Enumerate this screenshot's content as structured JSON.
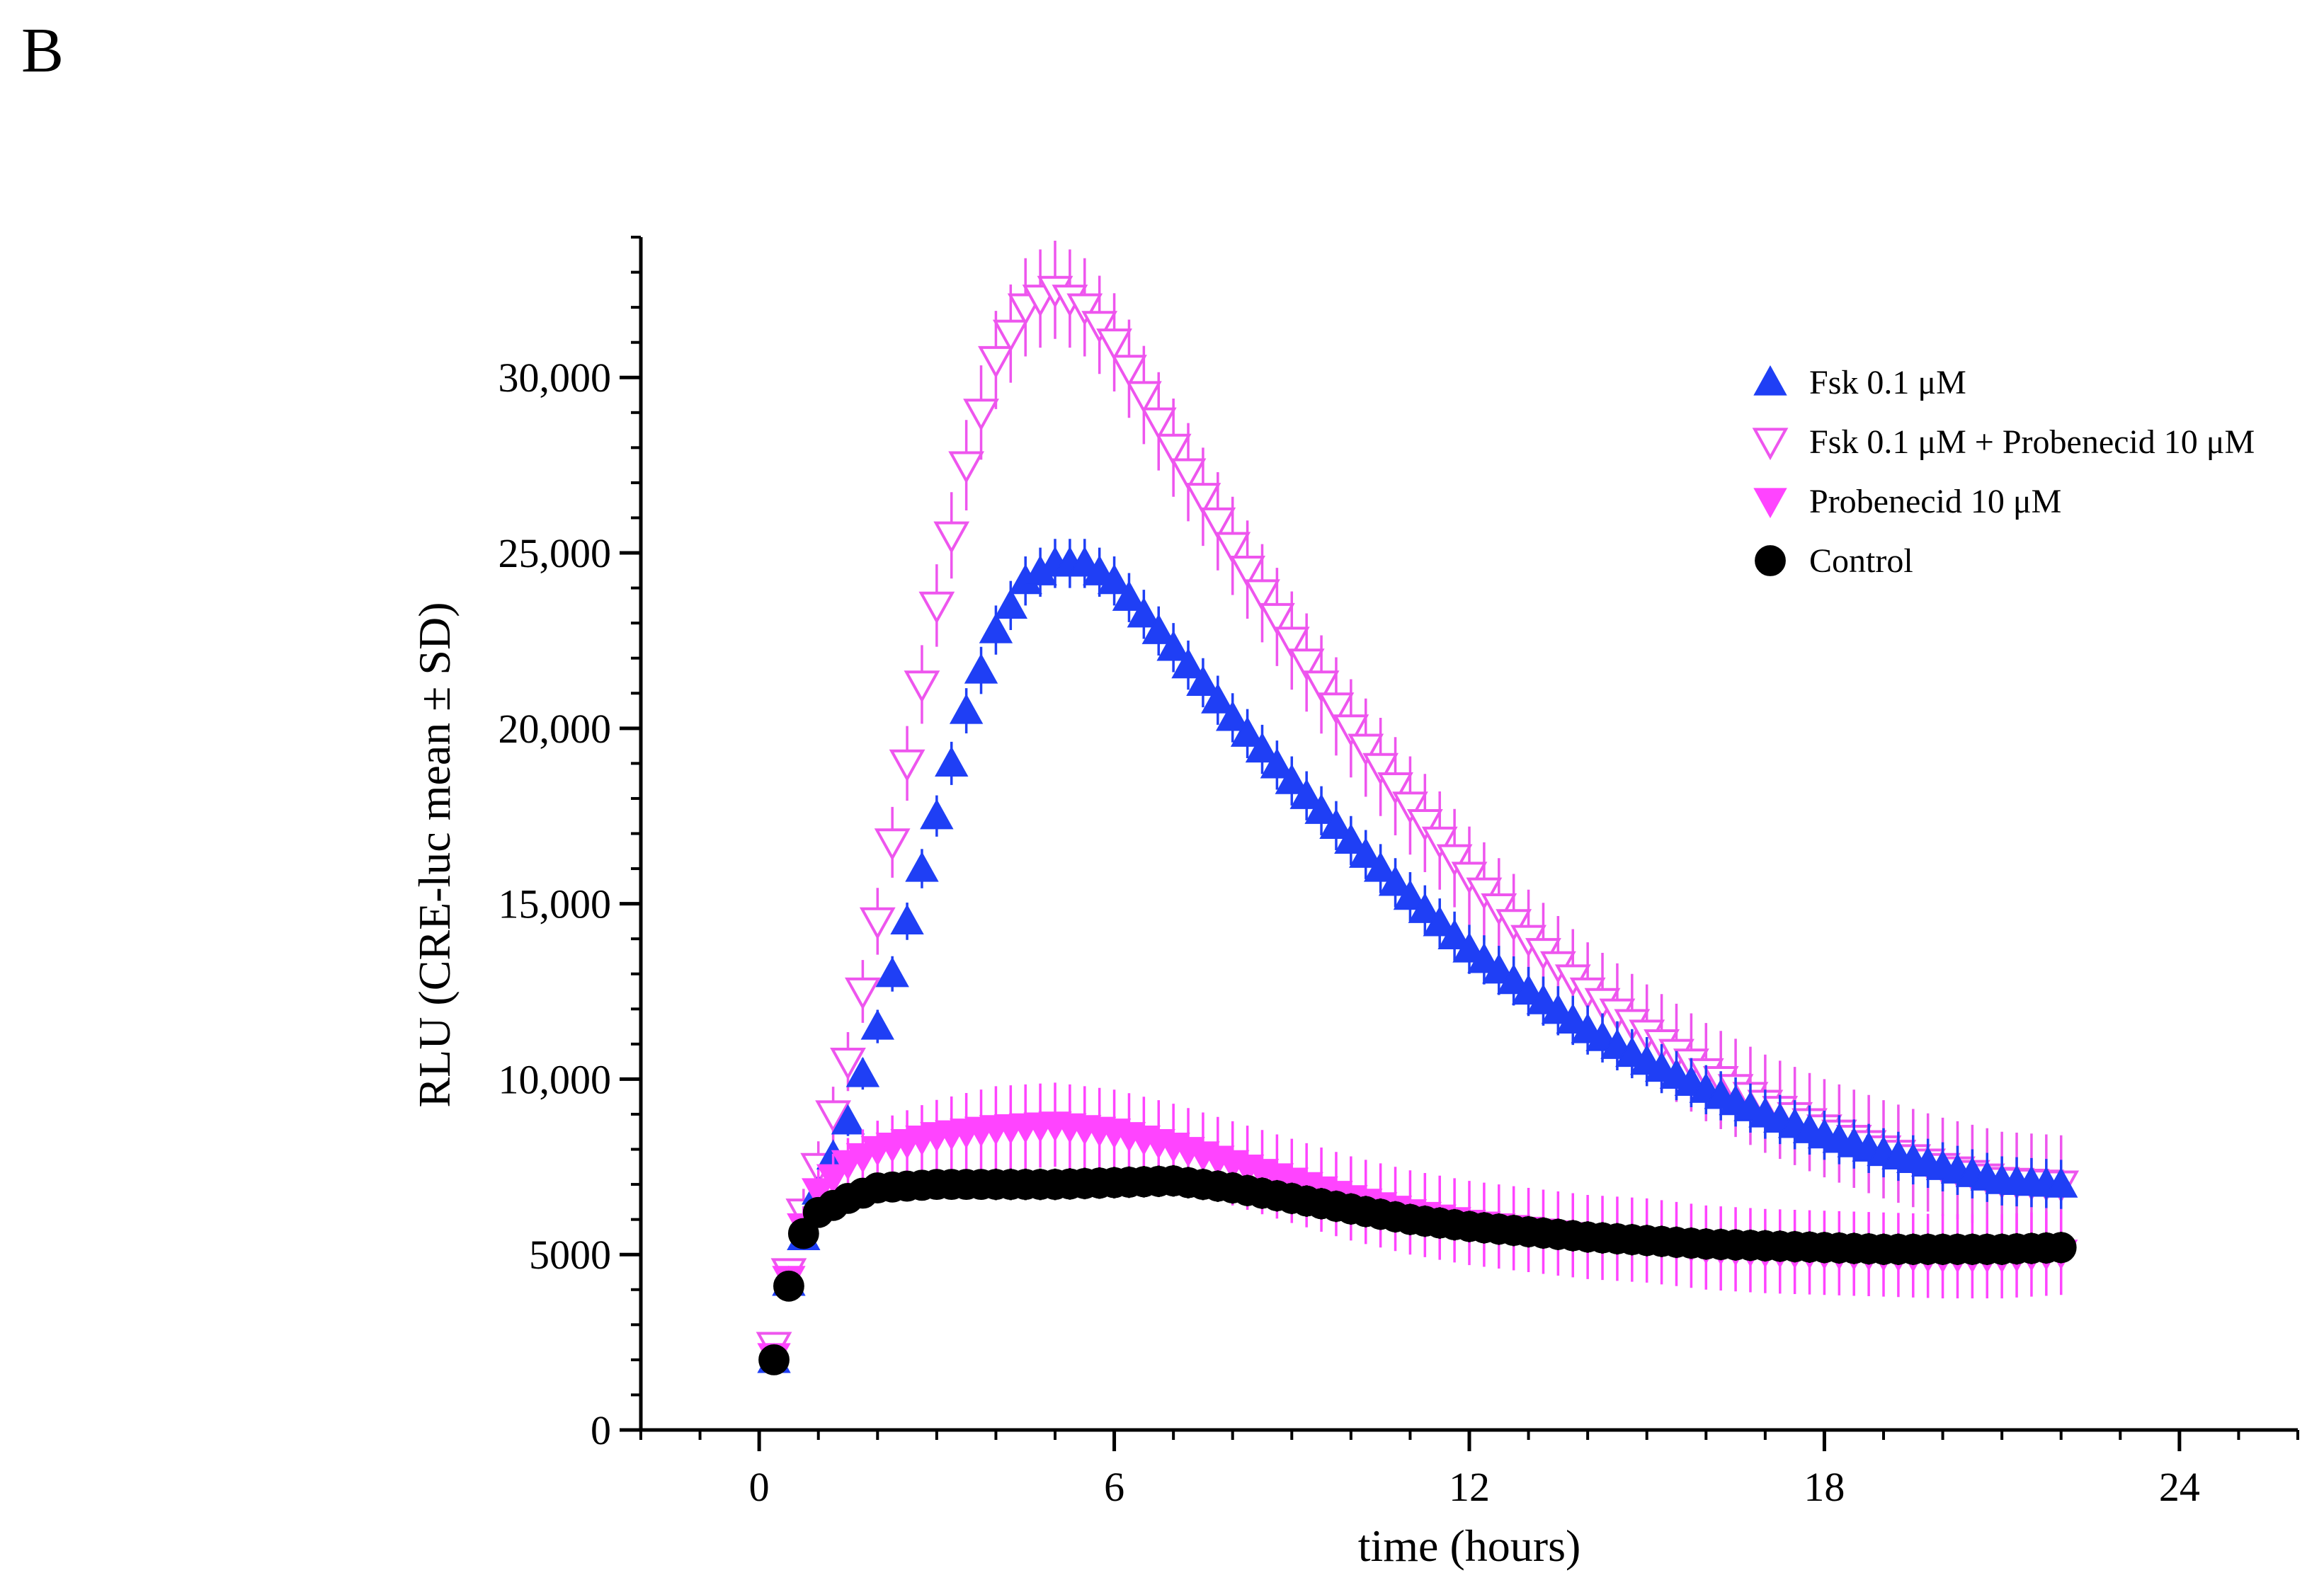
{
  "panel_label": "B",
  "chart_data": {
    "type": "scatter",
    "title": "",
    "xlabel": "time (hours)",
    "ylabel": "RLU (CRE-luc mean ± SD)",
    "xlim": [
      -2,
      26
    ],
    "ylim": [
      0,
      34000
    ],
    "x_ticks": [
      0,
      6,
      12,
      18,
      24
    ],
    "y_ticks": [
      0,
      5000,
      10000,
      15000,
      20000,
      25000,
      30000
    ],
    "y_tick_labels": [
      "0",
      "5000",
      "10,000",
      "15,000",
      "20,000",
      "25,000",
      "30,000"
    ],
    "x_tick_labels": [
      "0",
      "6",
      "12",
      "18",
      "24"
    ],
    "grid": false,
    "legend_position": "top-right",
    "sampling": {
      "start_hours": 0.25,
      "step_hours": 0.25,
      "count": 88
    },
    "series": [
      {
        "name": "Fsk 0.1 μM",
        "marker": "triangle-up",
        "filled": true,
        "color": "#1f3ff5",
        "anchors": [
          [
            0.25,
            2000
          ],
          [
            0.5,
            4200
          ],
          [
            0.75,
            5500
          ],
          [
            1.0,
            6800
          ],
          [
            1.5,
            8800
          ],
          [
            2.0,
            11500
          ],
          [
            2.5,
            14500
          ],
          [
            3.0,
            17500
          ],
          [
            3.5,
            20500
          ],
          [
            4.0,
            22800
          ],
          [
            4.5,
            24200
          ],
          [
            5.0,
            24700
          ],
          [
            5.5,
            24700
          ],
          [
            6.0,
            24200
          ],
          [
            7.0,
            22300
          ],
          [
            8.0,
            20300
          ],
          [
            9.0,
            18500
          ],
          [
            10.0,
            16800
          ],
          [
            11.0,
            15200
          ],
          [
            12.0,
            13700
          ],
          [
            13.0,
            12500
          ],
          [
            14.0,
            11400
          ],
          [
            15.0,
            10500
          ],
          [
            16.0,
            9700
          ],
          [
            17.0,
            9000
          ],
          [
            18.0,
            8400
          ],
          [
            19.0,
            7900
          ],
          [
            20.0,
            7500
          ],
          [
            21.0,
            7100
          ],
          [
            22.0,
            7000
          ]
        ],
        "sd": 700
      },
      {
        "name": "Fsk 0.1 μM + Probenecid 10 μM",
        "marker": "triangle-down",
        "filled": false,
        "color": "#ee55ee",
        "anchors": [
          [
            0.25,
            2400
          ],
          [
            0.5,
            4500
          ],
          [
            0.75,
            6200
          ],
          [
            1.0,
            7500
          ],
          [
            1.5,
            10500
          ],
          [
            2.0,
            14500
          ],
          [
            2.5,
            19000
          ],
          [
            3.0,
            23500
          ],
          [
            3.5,
            27500
          ],
          [
            4.0,
            30500
          ],
          [
            4.5,
            32000
          ],
          [
            5.0,
            32500
          ],
          [
            5.5,
            32000
          ],
          [
            6.0,
            31000
          ],
          [
            7.0,
            28000
          ],
          [
            8.0,
            25200
          ],
          [
            9.0,
            22500
          ],
          [
            10.0,
            20000
          ],
          [
            11.0,
            17800
          ],
          [
            12.0,
            15800
          ],
          [
            13.0,
            14000
          ],
          [
            14.0,
            12500
          ],
          [
            15.0,
            11300
          ],
          [
            16.0,
            10200
          ],
          [
            17.0,
            9300
          ],
          [
            18.0,
            8600
          ],
          [
            19.0,
            8000
          ],
          [
            20.0,
            7500
          ],
          [
            21.0,
            7100
          ],
          [
            22.0,
            7000
          ]
        ],
        "sd": 1400
      },
      {
        "name": "Probenecid 10 μM",
        "marker": "triangle-down",
        "filled": true,
        "color": "#ff44ff",
        "anchors": [
          [
            0.25,
            2100
          ],
          [
            0.5,
            4300
          ],
          [
            0.75,
            5800
          ],
          [
            1.0,
            6800
          ],
          [
            1.5,
            7600
          ],
          [
            2.0,
            8000
          ],
          [
            3.0,
            8400
          ],
          [
            4.0,
            8600
          ],
          [
            5.0,
            8700
          ],
          [
            6.0,
            8500
          ],
          [
            7.0,
            8100
          ],
          [
            8.0,
            7600
          ],
          [
            9.0,
            7100
          ],
          [
            10.0,
            6600
          ],
          [
            11.0,
            6200
          ],
          [
            12.0,
            5900
          ],
          [
            13.0,
            5700
          ],
          [
            14.0,
            5500
          ],
          [
            15.0,
            5400
          ],
          [
            16.0,
            5200
          ],
          [
            17.0,
            5100
          ],
          [
            18.0,
            5050
          ],
          [
            19.0,
            5000
          ],
          [
            20.0,
            4950
          ],
          [
            21.0,
            4950
          ],
          [
            22.0,
            5050
          ]
        ],
        "sd": 1200
      },
      {
        "name": "Control",
        "marker": "circle",
        "filled": true,
        "color": "#000000",
        "anchors": [
          [
            0.25,
            2000
          ],
          [
            0.5,
            4100
          ],
          [
            0.75,
            5600
          ],
          [
            1.0,
            6200
          ],
          [
            1.5,
            6600
          ],
          [
            2.0,
            6900
          ],
          [
            3.0,
            7000
          ],
          [
            4.0,
            7000
          ],
          [
            5.0,
            7000
          ],
          [
            6.0,
            7050
          ],
          [
            7.0,
            7100
          ],
          [
            8.0,
            6900
          ],
          [
            9.0,
            6600
          ],
          [
            10.0,
            6300
          ],
          [
            11.0,
            6000
          ],
          [
            12.0,
            5800
          ],
          [
            13.0,
            5650
          ],
          [
            14.0,
            5500
          ],
          [
            15.0,
            5400
          ],
          [
            16.0,
            5300
          ],
          [
            17.0,
            5250
          ],
          [
            18.0,
            5200
          ],
          [
            19.0,
            5150
          ],
          [
            20.0,
            5150
          ],
          [
            21.0,
            5150
          ],
          [
            22.0,
            5200
          ]
        ],
        "sd": 450
      }
    ]
  }
}
